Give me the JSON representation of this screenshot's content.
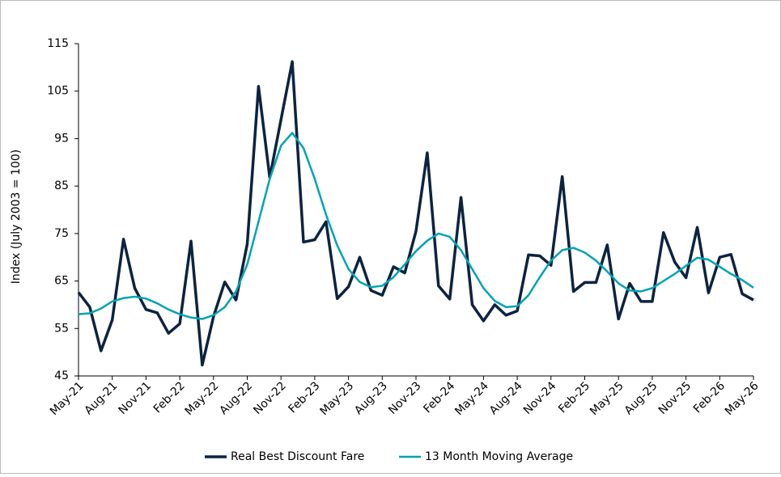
{
  "chart_data": {
    "type": "line",
    "ylabel": "Index (July 2003 = 100)",
    "categories": [
      "May-21",
      null,
      null,
      "Aug-21",
      null,
      null,
      "Nov-21",
      null,
      null,
      "Feb-22",
      null,
      null,
      "May-22",
      null,
      null,
      "Aug-22",
      null,
      null,
      "Nov-22",
      null,
      null,
      "Feb-23",
      null,
      null,
      "May-23",
      null,
      null,
      "Aug-23",
      null,
      null,
      "Nov-23",
      null,
      null,
      "Feb-24",
      null,
      null,
      "May-24",
      null,
      null,
      "Aug-24",
      null,
      null,
      "Nov-24",
      null,
      null,
      "Feb-25",
      null,
      null,
      "May-25",
      null,
      null,
      "Aug-25",
      null,
      null,
      "Nov-25",
      null,
      null,
      "Feb-26",
      null,
      null,
      "May-26"
    ],
    "series": [
      {
        "name": "Real Best Discount Fare",
        "color": "#0c2340",
        "values": [
          62.6,
          59.5,
          50.3,
          56.8,
          73.8,
          63.5,
          59.0,
          58.3,
          54.0,
          56.0,
          73.4,
          47.3,
          57.5,
          64.8,
          61.0,
          72.8,
          106.0,
          86.8,
          99.0,
          111.2,
          73.2,
          73.7,
          77.5,
          61.3,
          63.8,
          70.0,
          63.0,
          62.0,
          68.0,
          66.7,
          75.5,
          92.0,
          64.0,
          61.2,
          82.6,
          60.0,
          56.6,
          60.0,
          57.8,
          58.7,
          70.5,
          70.3,
          68.3,
          87.0,
          62.8,
          64.7,
          64.7,
          72.6,
          57.0,
          64.5,
          60.7,
          60.7,
          75.2,
          69.0,
          65.7,
          76.3,
          62.5,
          70.0,
          70.6,
          62.3,
          61.0
        ]
      },
      {
        "name": "13 Month Moving Average",
        "color": "#00a3b4",
        "values": [
          58.0,
          58.2,
          59.2,
          60.7,
          61.4,
          61.7,
          61.3,
          60.3,
          59.0,
          58.0,
          57.3,
          57.0,
          57.8,
          59.5,
          62.8,
          68.5,
          77.5,
          86.5,
          93.5,
          96.2,
          93.0,
          86.5,
          79.0,
          72.5,
          67.5,
          64.8,
          63.7,
          64.0,
          65.8,
          68.5,
          71.3,
          73.5,
          75.0,
          74.3,
          71.5,
          67.5,
          63.5,
          60.8,
          59.5,
          59.7,
          62.0,
          65.8,
          69.3,
          71.5,
          72.0,
          71.0,
          69.3,
          67.0,
          64.5,
          63.0,
          62.8,
          63.5,
          65.0,
          66.5,
          68.2,
          69.9,
          69.5,
          68.0,
          66.5,
          65.2,
          63.6
        ]
      }
    ],
    "ylim": [
      45,
      115
    ],
    "yticks": [
      45,
      55,
      65,
      75,
      85,
      95,
      105,
      115
    ],
    "grid": false
  }
}
